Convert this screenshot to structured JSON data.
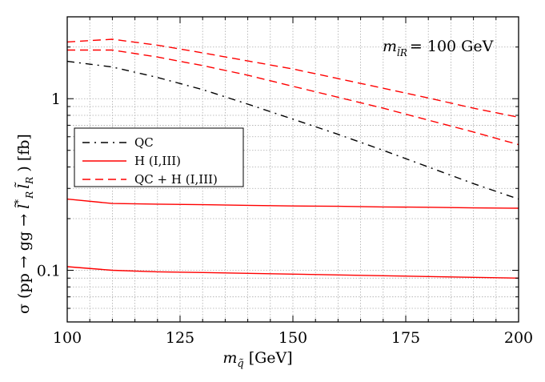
{
  "chart_data": {
    "type": "line",
    "xlabel": "m_q̃ [GeV]",
    "xlabel_main": "m",
    "xlabel_sub": "q̃",
    "xlabel_unit": "[GeV]",
    "ylabel": "σ (pp → gg → l̃*R l̃R ) [fb]",
    "ylabel_pre": "σ (pp → gg → ",
    "ylabel_l1": "l̃",
    "ylabel_sup": "*",
    "ylabel_sub1": "R",
    "ylabel_l2": "l̃",
    "ylabel_sub2": "R",
    "ylabel_post": " ) [fb]",
    "xlim": [
      100,
      200
    ],
    "ylim": [
      0.05,
      3
    ],
    "yscale": "log",
    "grid": true,
    "legend_position": "center-left",
    "xticks": [
      "100",
      "125",
      "150",
      "175",
      "200"
    ],
    "yticks": [
      "0.1",
      "1"
    ],
    "annotation": {
      "main": "m",
      "sub": "l̃R",
      "rest": "= 100 GeV"
    },
    "x": [
      100,
      110,
      120,
      130,
      140,
      150,
      160,
      170,
      180,
      190,
      200
    ],
    "series": [
      {
        "name": "QC",
        "color": "#000000",
        "style": "dashdot",
        "values": [
          1.65,
          1.53,
          1.33,
          1.13,
          0.93,
          0.76,
          0.62,
          0.5,
          0.4,
          0.32,
          0.26
        ]
      },
      {
        "name": "H (I,III)",
        "color": "#ff0000",
        "style": "solid",
        "values": [
          0.26,
          0.245,
          0.243,
          0.241,
          0.239,
          0.237,
          0.236,
          0.234,
          0.233,
          0.231,
          0.23
        ]
      },
      {
        "name": "H (I,III)",
        "color": "#ff0000",
        "style": "solid",
        "values": [
          0.105,
          0.1,
          0.098,
          0.097,
          0.096,
          0.095,
          0.094,
          0.093,
          0.092,
          0.091,
          0.09
        ]
      },
      {
        "name": "QC + H (I,III)",
        "color": "#ff0000",
        "style": "dashed",
        "values": [
          2.14,
          2.22,
          2.05,
          1.85,
          1.66,
          1.49,
          1.31,
          1.15,
          1.01,
          0.88,
          0.78
        ]
      },
      {
        "name": "QC + H (I,III)",
        "color": "#ff0000",
        "style": "dashed",
        "values": [
          1.92,
          1.92,
          1.75,
          1.56,
          1.37,
          1.18,
          1.02,
          0.88,
          0.75,
          0.64,
          0.54
        ]
      }
    ],
    "legend": [
      {
        "label": "QC",
        "color": "#000000",
        "style": "dashdot"
      },
      {
        "label": "H (I,III)",
        "color": "#ff0000",
        "style": "solid"
      },
      {
        "label": "QC + H (I,III)",
        "color": "#ff0000",
        "style": "dashed"
      }
    ]
  }
}
